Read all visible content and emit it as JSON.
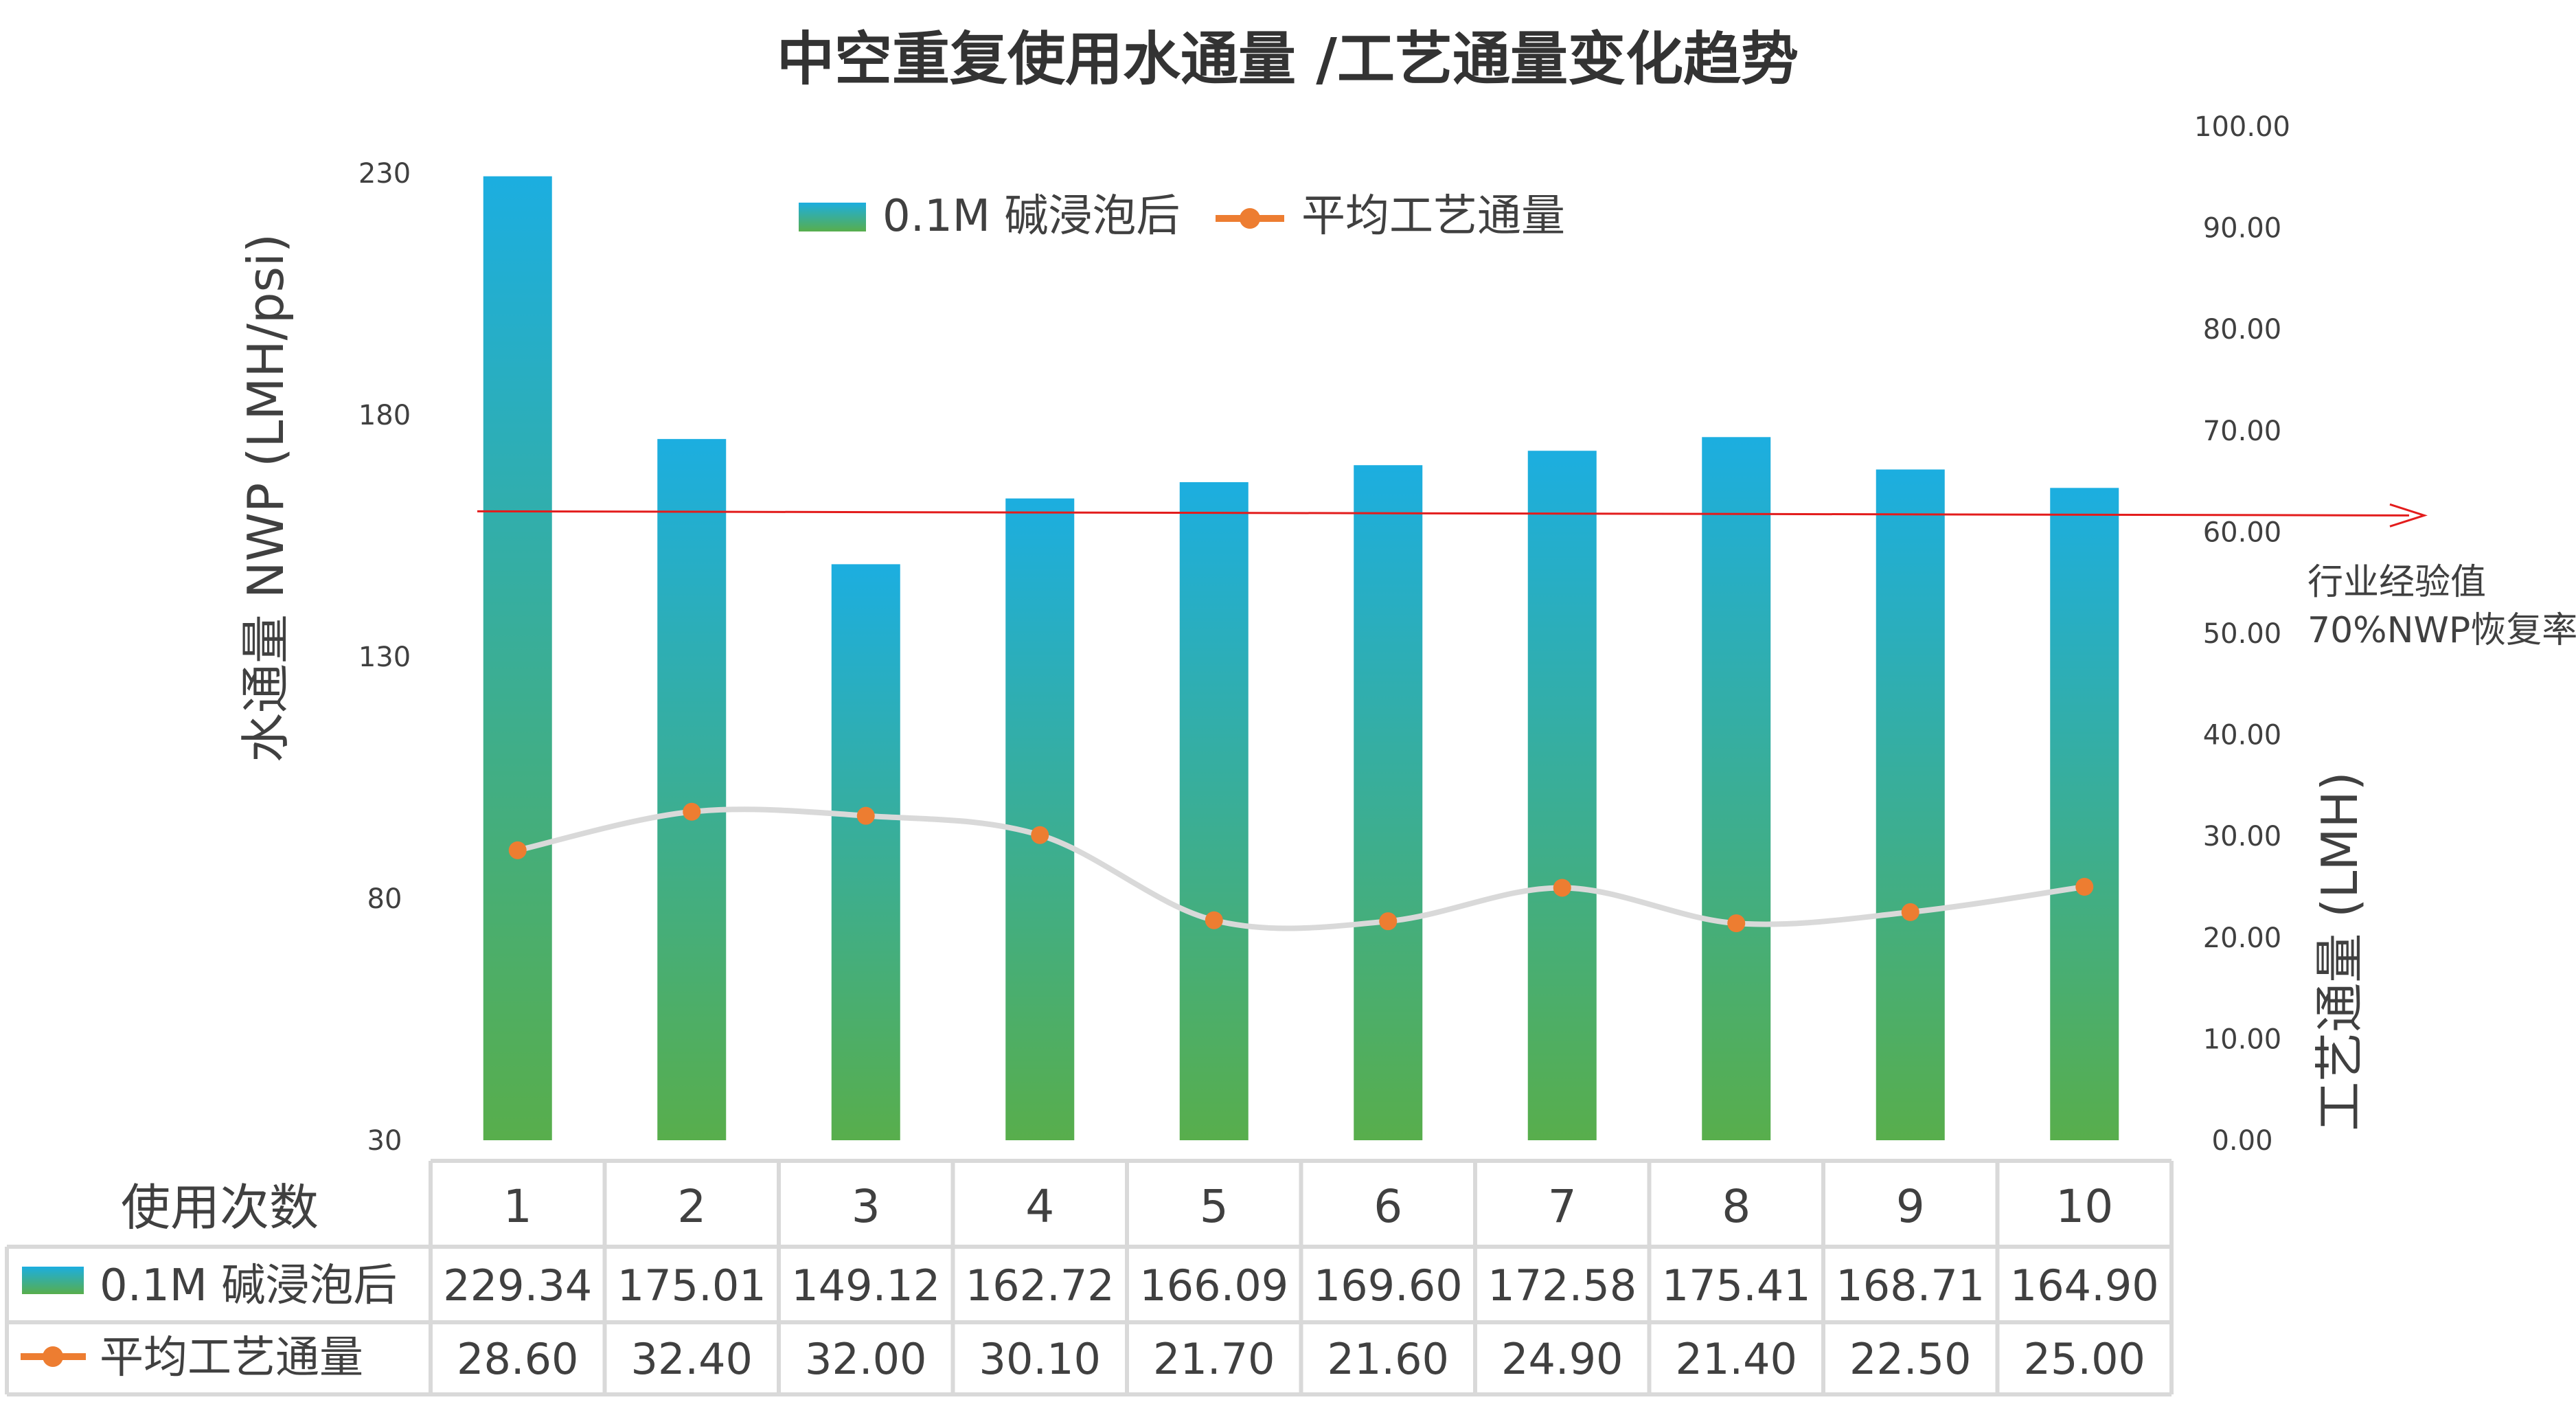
{
  "chart_data": {
    "type": "bar",
    "title": "中空重复使用水通量 /工艺通量变化趋势",
    "categories": [
      "1",
      "2",
      "3",
      "4",
      "5",
      "6",
      "7",
      "8",
      "9",
      "10"
    ],
    "series": [
      {
        "name": "0.1M 碱浸泡后",
        "type": "bar",
        "axis": "left",
        "values": [
          229.34,
          175.01,
          149.12,
          162.72,
          166.09,
          169.6,
          172.58,
          175.41,
          168.71,
          164.9
        ],
        "value_labels": [
          "229.34",
          "175.01",
          "149.12",
          "162.72",
          "166.09",
          "169.60",
          "172.58",
          "175.41",
          "168.71",
          "164.90"
        ]
      },
      {
        "name": "平均工艺通量",
        "type": "line",
        "axis": "right",
        "values": [
          28.6,
          32.4,
          32.0,
          30.1,
          21.7,
          21.6,
          24.9,
          21.4,
          22.5,
          25.0
        ],
        "value_labels": [
          "28.60",
          "32.40",
          "32.00",
          "30.10",
          "21.70",
          "21.60",
          "24.90",
          "21.40",
          "22.50",
          "25.00"
        ]
      }
    ],
    "ylabel": "水通量 NWP (LMH/psi)",
    "ylim": [
      30,
      230
    ],
    "yticks": [
      "230",
      "180",
      "130",
      "80",
      "30"
    ],
    "y2label": "工艺通量 (LMH)",
    "y2lim": [
      0,
      100
    ],
    "y2ticks": [
      "100.00",
      "90.00",
      "80.00",
      "70.00",
      "60.00",
      "50.00",
      "40.00",
      "30.00",
      "20.00",
      "10.00",
      "0.00"
    ],
    "reference_line": {
      "axis": "right",
      "value": 61.9,
      "label_line1": "行业经验值",
      "label_line2": "70%NWP恢复率"
    },
    "table_header": "使用次数",
    "legend_position": "top-center",
    "grid": false
  },
  "colors": {
    "bar_top": "#1CAEE0",
    "bar_bottom": "#58AE4C",
    "line_marker": "#ED7D31",
    "line_stroke": "#D9D9D9",
    "reference_line": "#E31C1C",
    "text": "#404040",
    "table_border": "#D9D9D9"
  }
}
